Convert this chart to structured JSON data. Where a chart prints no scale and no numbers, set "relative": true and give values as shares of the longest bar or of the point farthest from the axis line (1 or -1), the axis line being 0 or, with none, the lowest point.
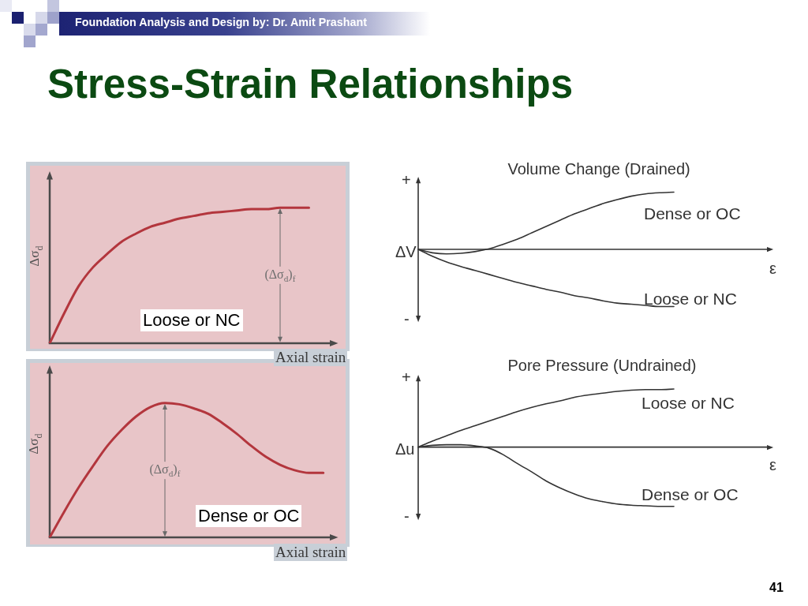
{
  "chart_data": [
    {
      "type": "line",
      "title": "Stress-Strain Relationships",
      "xlabel": "Axial strain",
      "ylabel": "Δσ$_{d}$",
      "relative": true,
      "categories": [
        null,
        null,
        null,
        null,
        null,
        null,
        null,
        null,
        null,
        null,
        null,
        null,
        null,
        null,
        null,
        null,
        null,
        null,
        null,
        null,
        null
      ],
      "series": [
        {
          "name": "Loose or NC",
          "color": "#b3363d",
          "values": [
            0,
            0.22,
            0.42,
            0.56,
            0.66,
            0.75,
            0.81,
            0.86,
            0.89,
            0.92,
            0.94,
            0.96,
            0.97,
            0.98,
            0.99,
            0.99,
            1.0,
            1.0,
            1.0,
            null,
            null
          ]
        }
      ],
      "annotations": [
        "Foundation Analysis and Design by: Dr. Amit Prashant",
        "(Δσ$_{d}$)$_{f}$",
        "41"
      ]
    },
    {
      "type": "line",
      "title": "Volume Change (Drained)",
      "xlabel": "ε",
      "ylabel": "ΔV",
      "relative": true,
      "categories": [
        null,
        null,
        null,
        null,
        null,
        null,
        null,
        null,
        null,
        null,
        null,
        null,
        null,
        null,
        null,
        null,
        null,
        null,
        null,
        null,
        null,
        null,
        null,
        null,
        null,
        null
      ],
      "series": [
        {
          "name": "Dense or OC",
          "color": "#333333",
          "values": [
            0,
            -0.06,
            -0.08,
            -0.07,
            -0.04,
            0.01,
            0.09,
            0.18,
            0.29,
            0.4,
            0.51,
            0.62,
            0.71,
            0.8,
            0.87,
            0.93,
            0.97,
            0.99,
            1.0,
            null,
            null,
            null,
            null,
            null,
            null,
            null
          ]
        },
        {
          "name": "Loose or NC",
          "color": "#333333",
          "values": [
            0,
            -0.12,
            -0.22,
            -0.3,
            -0.37,
            -0.44,
            -0.51,
            -0.58,
            -0.64,
            -0.7,
            -0.75,
            -0.81,
            -0.85,
            -0.9,
            -0.94,
            -0.96,
            -0.98,
            -1.0,
            -1.0,
            null,
            null,
            null,
            null,
            null,
            null,
            null
          ]
        }
      ],
      "annotations": [
        "+",
        "-"
      ]
    },
    {
      "type": "line",
      "xlabel": "Axial strain",
      "ylabel": "Δσ$_{d}$",
      "relative": true,
      "categories": [
        null,
        null,
        null,
        null,
        null,
        null,
        null,
        null,
        null,
        null,
        null,
        null,
        null,
        null,
        null,
        null,
        null,
        null,
        null,
        null,
        null
      ],
      "series": [
        {
          "name": "Dense or OC",
          "color": "#b3363d",
          "values": [
            0,
            0.19,
            0.37,
            0.53,
            0.68,
            0.8,
            0.9,
            0.97,
            1.0,
            0.99,
            0.96,
            0.92,
            0.85,
            0.77,
            0.68,
            0.6,
            0.54,
            0.5,
            0.48,
            0.48,
            null
          ]
        }
      ],
      "annotations": [
        "(Δσ$_{d}$)$_{f}$"
      ]
    },
    {
      "type": "line",
      "title": "Pore Pressure (Undrained)",
      "xlabel": "ε",
      "ylabel": "Δu",
      "relative": true,
      "categories": [
        null,
        null,
        null,
        null,
        null,
        null,
        null,
        null,
        null,
        null,
        null,
        null,
        null,
        null,
        null,
        null,
        null,
        null,
        null,
        null,
        null,
        null,
        null,
        null,
        null,
        null
      ],
      "series": [
        {
          "name": "Loose or NC",
          "color": "#333333",
          "values": [
            0,
            0.1,
            0.19,
            0.28,
            0.36,
            0.44,
            0.52,
            0.6,
            0.67,
            0.73,
            0.78,
            0.84,
            0.88,
            0.91,
            0.94,
            0.96,
            0.97,
            0.97,
            0.98,
            null,
            null,
            null,
            null,
            null,
            null,
            null
          ]
        },
        {
          "name": "Dense or OC",
          "color": "#333333",
          "values": [
            0,
            0.03,
            0.04,
            0.04,
            0.02,
            -0.02,
            -0.13,
            -0.28,
            -0.42,
            -0.57,
            -0.69,
            -0.79,
            -0.87,
            -0.92,
            -0.96,
            -0.98,
            -0.99,
            -1.0,
            -1.0,
            null,
            null,
            null,
            null,
            null,
            null,
            null
          ]
        }
      ],
      "annotations": [
        "+",
        "-"
      ]
    }
  ]
}
